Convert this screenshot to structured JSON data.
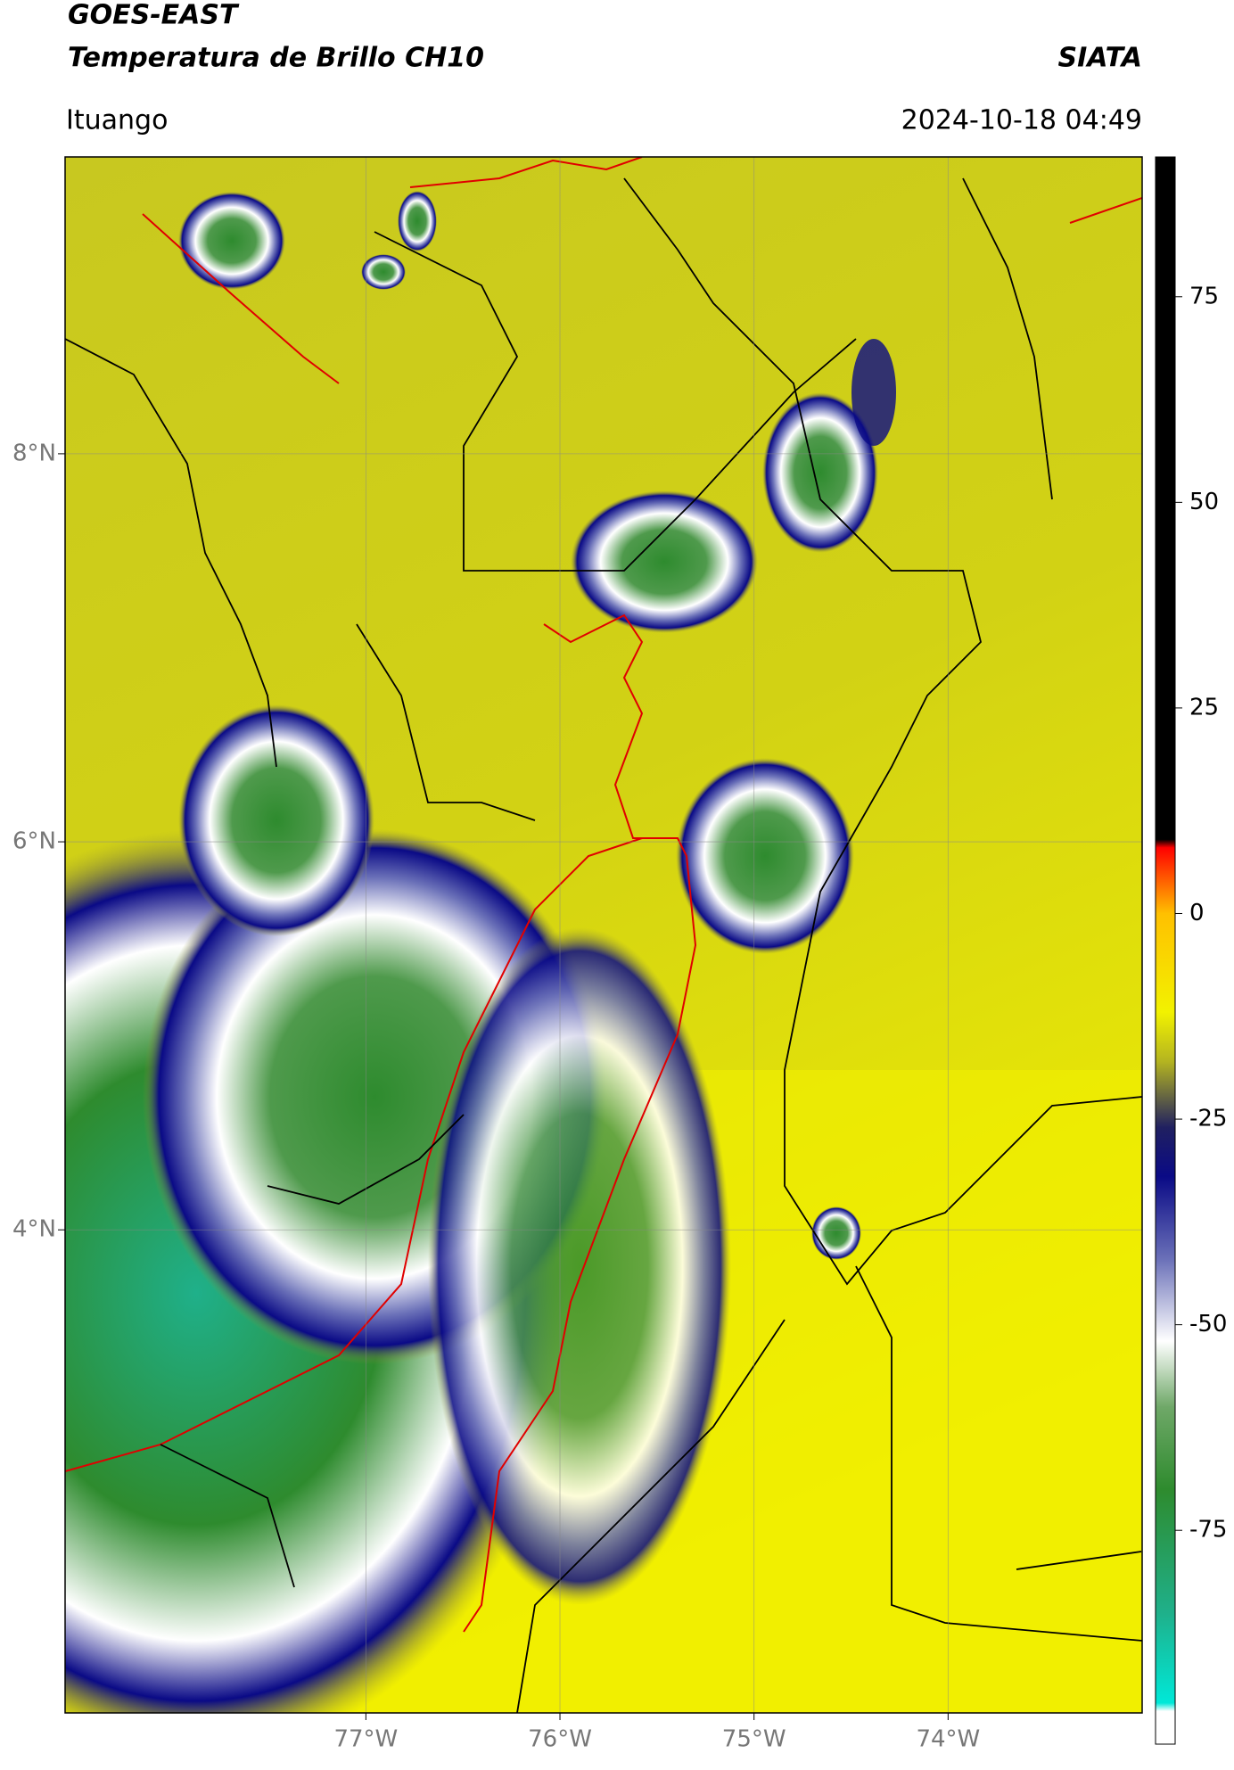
{
  "header": {
    "title": "GOES-EAST",
    "subtitle": "Temperatura de Brillo CH10",
    "source": "SIATA",
    "location": "Ituango",
    "datetime": "2024-10-18 04:49"
  },
  "map": {
    "xlim": [
      -78.55,
      -73.0
    ],
    "ylim": [
      1.51,
      9.53
    ],
    "xticks": [
      {
        "value": -77,
        "label": "77°W"
      },
      {
        "value": -76,
        "label": "76°W"
      },
      {
        "value": -75,
        "label": "75°W"
      },
      {
        "value": -74,
        "label": "74°W"
      }
    ],
    "yticks": [
      {
        "value": 8,
        "label": "8°N"
      },
      {
        "value": 6,
        "label": "6°N"
      },
      {
        "value": 4,
        "label": "4°N"
      }
    ],
    "grid": true
  },
  "colorbar": {
    "lim": [
      -101,
      92
    ],
    "ticks": [
      75,
      50,
      25,
      0,
      -25,
      -50,
      -75
    ],
    "stops": [
      {
        "value": -101,
        "color": "#ffffff"
      },
      {
        "value": -97,
        "color": "#ffffff"
      },
      {
        "value": -96,
        "color": "#00e8d8"
      },
      {
        "value": -85,
        "color": "#1fb08a"
      },
      {
        "value": -70,
        "color": "#2e8b2e"
      },
      {
        "value": -60,
        "color": "#6fa868"
      },
      {
        "value": -52,
        "color": "#ffffff"
      },
      {
        "value": -42,
        "color": "#6a70b8"
      },
      {
        "value": -32,
        "color": "#0a0a86"
      },
      {
        "value": -26,
        "color": "#202060"
      },
      {
        "value": -22,
        "color": "#6a6a40"
      },
      {
        "value": -18,
        "color": "#b4b420"
      },
      {
        "value": -12,
        "color": "#f2f200"
      },
      {
        "value": 0,
        "color": "#ffc000"
      },
      {
        "value": 8,
        "color": "#ff0000"
      },
      {
        "value": 9,
        "color": "#000000"
      },
      {
        "value": 92,
        "color": "#000000"
      }
    ]
  }
}
